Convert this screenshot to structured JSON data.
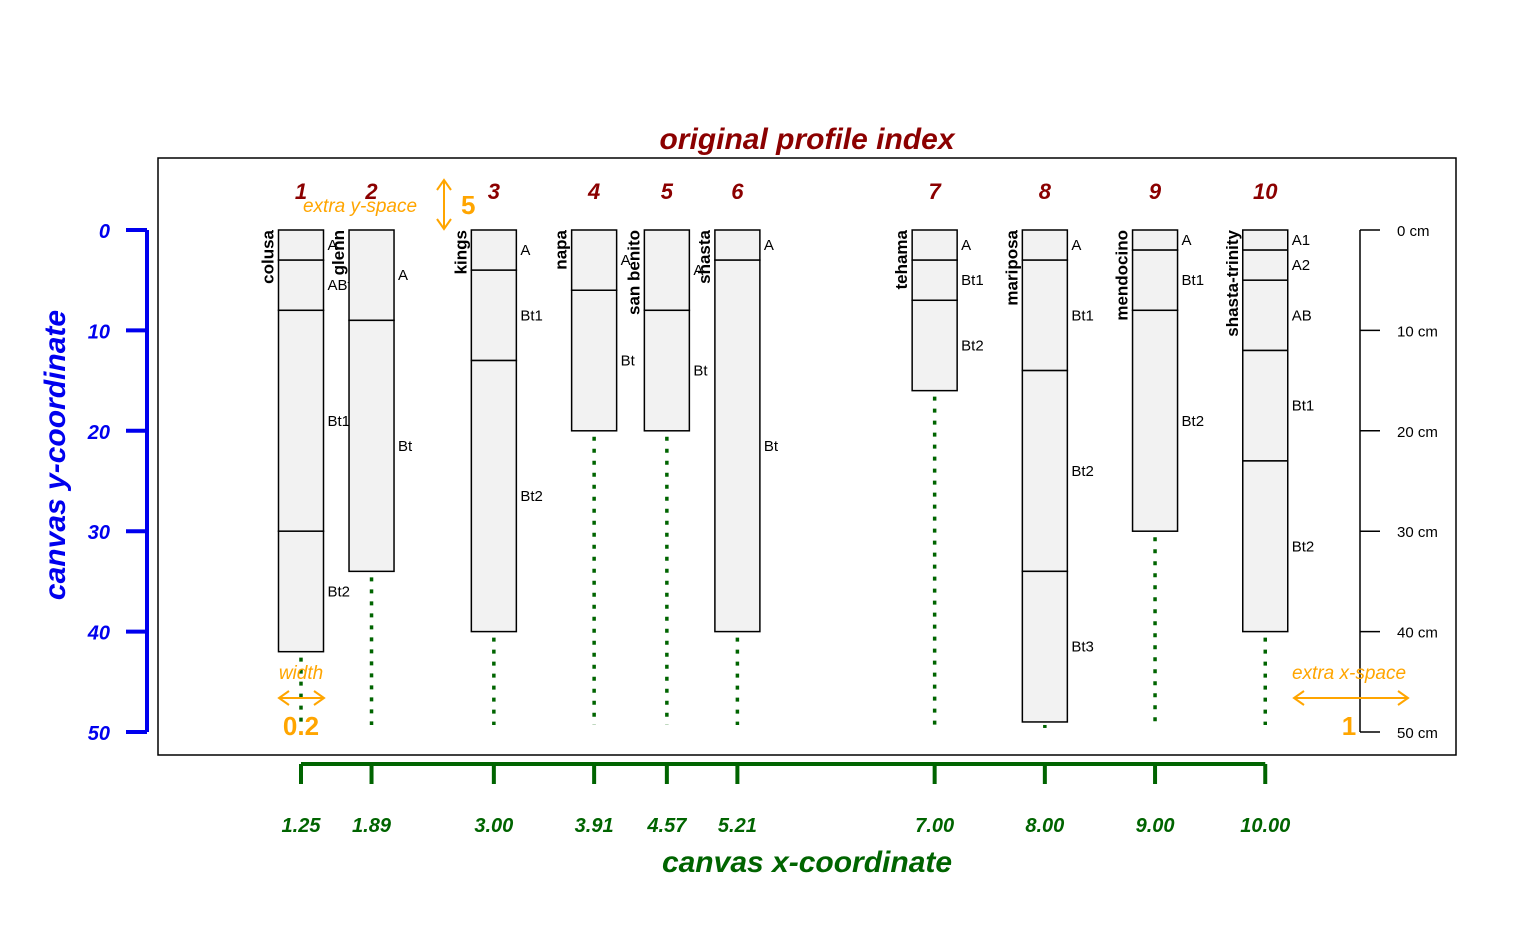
{
  "chart_data": {
    "type": "profile-sketch",
    "title": "original profile index",
    "xlabel": "canvas x-coordinate",
    "ylabel": "canvas y-coordinate",
    "ylim": [
      0,
      50
    ],
    "y_ticks": [
      0,
      10,
      20,
      30,
      40,
      50
    ],
    "depth_ticks": [
      "0 cm",
      "10 cm",
      "20 cm",
      "30 cm",
      "40 cm",
      "50 cm"
    ],
    "profiles": [
      {
        "index": "1",
        "name": "colusa",
        "x": 1.25,
        "x_label": "1.25",
        "depth": 42,
        "horizons": [
          {
            "name": "A",
            "top": 0,
            "bottom": 3
          },
          {
            "name": "ABt",
            "top": 3,
            "bottom": 8
          },
          {
            "name": "Bt1",
            "top": 8,
            "bottom": 30
          },
          {
            "name": "Bt2",
            "top": 30,
            "bottom": 42
          }
        ]
      },
      {
        "index": "2",
        "name": "glenn",
        "x": 1.89,
        "x_label": "1.89",
        "depth": 34,
        "horizons": [
          {
            "name": "A",
            "top": 0,
            "bottom": 9
          },
          {
            "name": "Bt",
            "top": 9,
            "bottom": 34
          }
        ]
      },
      {
        "index": "3",
        "name": "kings",
        "x": 3.0,
        "x_label": "3.00",
        "depth": 40,
        "horizons": [
          {
            "name": "A",
            "top": 0,
            "bottom": 4
          },
          {
            "name": "Bt1",
            "top": 4,
            "bottom": 13
          },
          {
            "name": "Bt2",
            "top": 13,
            "bottom": 40
          }
        ]
      },
      {
        "index": "4",
        "name": "napa",
        "x": 3.91,
        "x_label": "3.91",
        "depth": 20,
        "horizons": [
          {
            "name": "A",
            "top": 0,
            "bottom": 6
          },
          {
            "name": "Bt",
            "top": 6,
            "bottom": 20
          }
        ]
      },
      {
        "index": "5",
        "name": "san benito",
        "x": 4.57,
        "x_label": "4.57",
        "depth": 20,
        "horizons": [
          {
            "name": "A",
            "top": 0,
            "bottom": 8
          },
          {
            "name": "Bt",
            "top": 8,
            "bottom": 20
          }
        ]
      },
      {
        "index": "6",
        "name": "shasta",
        "x": 5.21,
        "x_label": "5.21",
        "depth": 40,
        "horizons": [
          {
            "name": "A",
            "top": 0,
            "bottom": 3
          },
          {
            "name": "Bt",
            "top": 3,
            "bottom": 40
          }
        ]
      },
      {
        "index": "7",
        "name": "tehama",
        "x": 7.0,
        "x_label": "7.00",
        "depth": 16,
        "horizons": [
          {
            "name": "A",
            "top": 0,
            "bottom": 3
          },
          {
            "name": "Bt1",
            "top": 3,
            "bottom": 7
          },
          {
            "name": "Bt2",
            "top": 7,
            "bottom": 16
          }
        ]
      },
      {
        "index": "8",
        "name": "mariposa",
        "x": 8.0,
        "x_label": "8.00",
        "depth": 49,
        "horizons": [
          {
            "name": "A",
            "top": 0,
            "bottom": 3
          },
          {
            "name": "Bt1",
            "top": 3,
            "bottom": 14
          },
          {
            "name": "Bt2",
            "top": 14,
            "bottom": 34
          },
          {
            "name": "Bt3",
            "top": 34,
            "bottom": 49
          }
        ]
      },
      {
        "index": "9",
        "name": "mendocino",
        "x": 9.0,
        "x_label": "9.00",
        "depth": 30,
        "horizons": [
          {
            "name": "A",
            "top": 0,
            "bottom": 2
          },
          {
            "name": "Bt1",
            "top": 2,
            "bottom": 8
          },
          {
            "name": "Bt2",
            "top": 8,
            "bottom": 30
          }
        ]
      },
      {
        "index": "10",
        "name": "shasta-trinity",
        "x": 10.0,
        "x_label": "10.00",
        "depth": 40,
        "horizons": [
          {
            "name": "A1",
            "top": 0,
            "bottom": 2
          },
          {
            "name": "A2",
            "top": 2,
            "bottom": 5
          },
          {
            "name": "AB",
            "top": 5,
            "bottom": 12
          },
          {
            "name": "Bt1",
            "top": 12,
            "bottom": 23
          },
          {
            "name": "Bt2",
            "top": 23,
            "bottom": 40
          }
        ]
      }
    ],
    "annotations": {
      "extra_y_space_label": "extra y-space",
      "extra_y_space_value": "5",
      "width_label": "width",
      "width_value": "0.2",
      "extra_x_space_label": "extra x-space",
      "extra_x_space_value": "1"
    },
    "colors": {
      "title": "#8B0000",
      "y_axis": "#0000EE",
      "x_axis": "#006400",
      "annotation": "#FFA500",
      "profile_fill": "#F2F2F2"
    }
  }
}
